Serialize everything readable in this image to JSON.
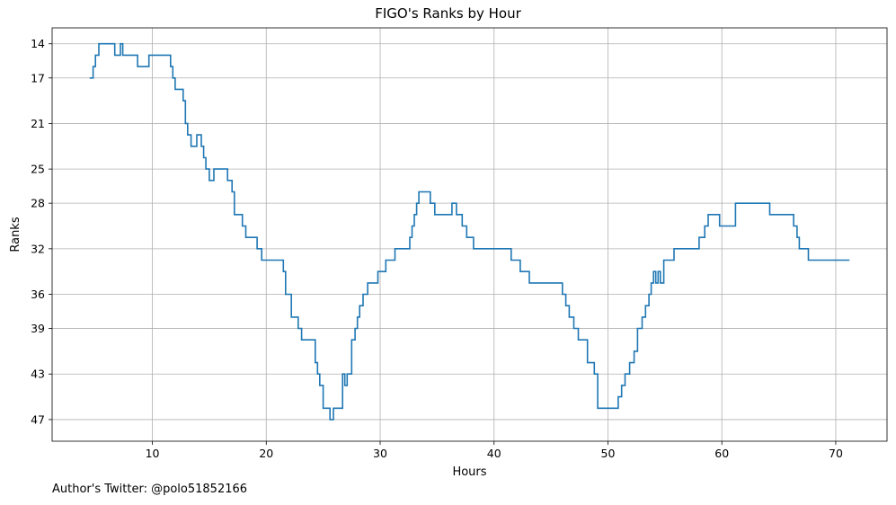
{
  "chart_data": {
    "type": "line",
    "title": "FIGO's Ranks by Hour",
    "xlabel": "Hours",
    "ylabel": "Ranks",
    "xlim": [
      1.2,
      74.5
    ],
    "ylim": [
      48.9,
      12.6
    ],
    "y_inverted": true,
    "grid": true,
    "line_color": "#1f77b4",
    "step": "post",
    "x_ticks": [
      10,
      20,
      30,
      40,
      50,
      60,
      70
    ],
    "y_ticks": [
      14,
      17,
      21,
      25,
      28,
      32,
      36,
      39,
      43,
      47
    ],
    "series": [
      {
        "points": [
          [
            4.5,
            17
          ],
          [
            4.8,
            16
          ],
          [
            5.0,
            15
          ],
          [
            5.3,
            14
          ],
          [
            6.7,
            15
          ],
          [
            7.2,
            14
          ],
          [
            7.4,
            15
          ],
          [
            8.7,
            16
          ],
          [
            9.7,
            15
          ],
          [
            11.6,
            16
          ],
          [
            11.8,
            17
          ],
          [
            12.0,
            18
          ],
          [
            12.7,
            19
          ],
          [
            12.9,
            21
          ],
          [
            13.1,
            22
          ],
          [
            13.4,
            23
          ],
          [
            13.9,
            22
          ],
          [
            14.3,
            23
          ],
          [
            14.5,
            24
          ],
          [
            14.7,
            25
          ],
          [
            15.0,
            26
          ],
          [
            15.4,
            25
          ],
          [
            16.6,
            26
          ],
          [
            17.0,
            27
          ],
          [
            17.2,
            29
          ],
          [
            17.9,
            30
          ],
          [
            18.2,
            31
          ],
          [
            19.2,
            32
          ],
          [
            19.6,
            33
          ],
          [
            21.5,
            34
          ],
          [
            21.7,
            36
          ],
          [
            22.2,
            38
          ],
          [
            22.8,
            39
          ],
          [
            23.1,
            40
          ],
          [
            24.3,
            42
          ],
          [
            24.5,
            43
          ],
          [
            24.7,
            44
          ],
          [
            25.0,
            46
          ],
          [
            25.6,
            47
          ],
          [
            25.9,
            46
          ],
          [
            26.7,
            43
          ],
          [
            26.9,
            44
          ],
          [
            27.1,
            43
          ],
          [
            27.5,
            40
          ],
          [
            27.8,
            39
          ],
          [
            28.0,
            38
          ],
          [
            28.2,
            37
          ],
          [
            28.5,
            36
          ],
          [
            28.9,
            35
          ],
          [
            29.8,
            34
          ],
          [
            30.5,
            33
          ],
          [
            31.3,
            32
          ],
          [
            32.6,
            31
          ],
          [
            32.8,
            30
          ],
          [
            33.0,
            29
          ],
          [
            33.2,
            28
          ],
          [
            33.4,
            27
          ],
          [
            34.4,
            28
          ],
          [
            34.8,
            29
          ],
          [
            36.3,
            28
          ],
          [
            36.7,
            29
          ],
          [
            37.2,
            30
          ],
          [
            37.6,
            31
          ],
          [
            38.2,
            32
          ],
          [
            41.5,
            33
          ],
          [
            42.3,
            34
          ],
          [
            43.1,
            35
          ],
          [
            46.0,
            36
          ],
          [
            46.3,
            37
          ],
          [
            46.6,
            38
          ],
          [
            47.0,
            39
          ],
          [
            47.4,
            40
          ],
          [
            48.2,
            42
          ],
          [
            48.8,
            43
          ],
          [
            49.1,
            46
          ],
          [
            50.9,
            45
          ],
          [
            51.2,
            44
          ],
          [
            51.5,
            43
          ],
          [
            51.9,
            42
          ],
          [
            52.3,
            41
          ],
          [
            52.6,
            39
          ],
          [
            53.0,
            38
          ],
          [
            53.3,
            37
          ],
          [
            53.6,
            36
          ],
          [
            53.8,
            35
          ],
          [
            54.0,
            34
          ],
          [
            54.2,
            35
          ],
          [
            54.4,
            34
          ],
          [
            54.6,
            35
          ],
          [
            54.9,
            33
          ],
          [
            55.8,
            32
          ],
          [
            58.0,
            31
          ],
          [
            58.5,
            30
          ],
          [
            58.8,
            29
          ],
          [
            59.8,
            30
          ],
          [
            61.2,
            28
          ],
          [
            64.2,
            29
          ],
          [
            66.3,
            30
          ],
          [
            66.6,
            31
          ],
          [
            66.8,
            32
          ],
          [
            67.6,
            33
          ],
          [
            71.2,
            33
          ]
        ]
      }
    ]
  },
  "credit": "Author's Twitter: @polo51852166"
}
